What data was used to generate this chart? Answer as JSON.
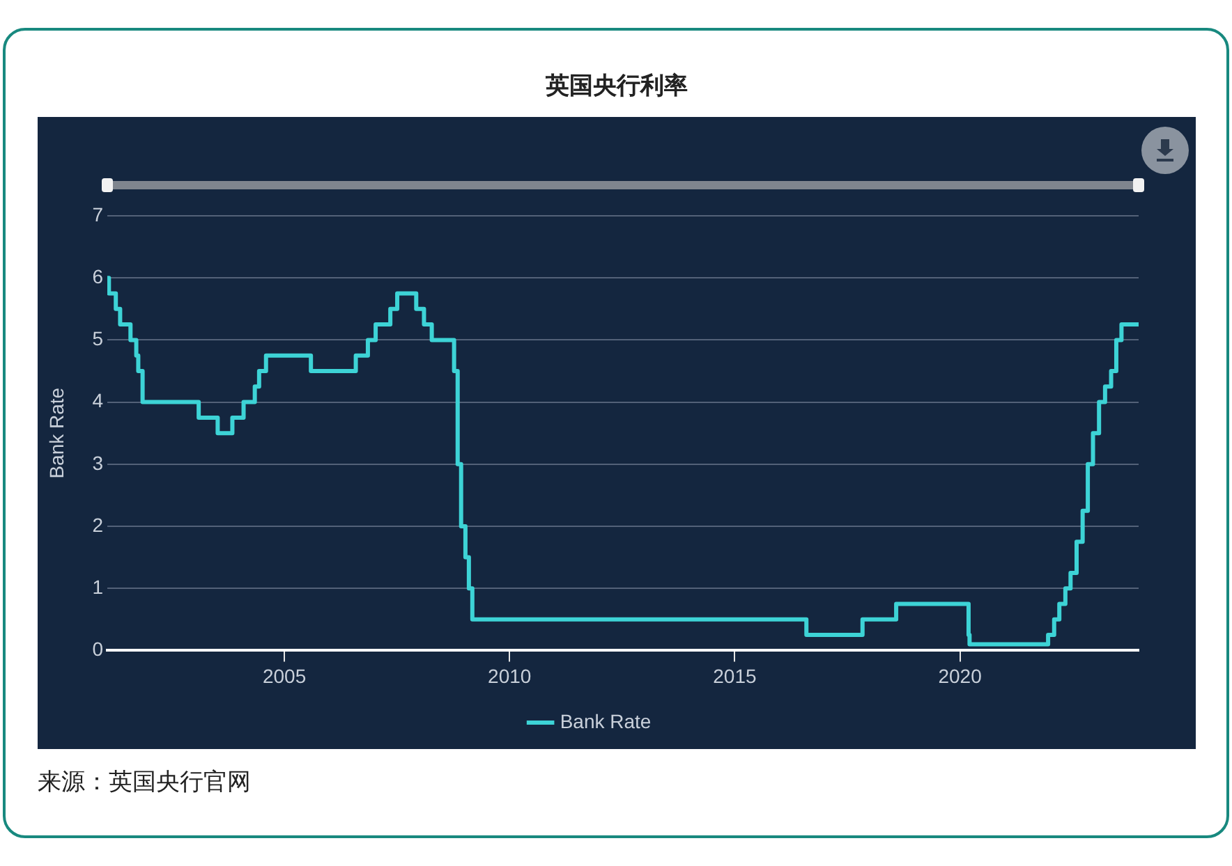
{
  "chart_data": {
    "type": "step",
    "title": "英国央行利率",
    "ylabel": "Bank Rate",
    "annotations": [
      "来源：英国央行官网"
    ],
    "x": [
      "2001-01-26",
      "2001-02-08",
      "2001-04-05",
      "2001-05-10",
      "2001-08-02",
      "2001-09-18",
      "2001-10-04",
      "2001-11-08",
      "2003-02-06",
      "2003-07-10",
      "2003-11-06",
      "2004-02-05",
      "2004-05-06",
      "2004-06-10",
      "2004-08-05",
      "2005-08-04",
      "2006-08-03",
      "2006-11-09",
      "2007-01-11",
      "2007-05-10",
      "2007-07-05",
      "2007-12-06",
      "2008-02-07",
      "2008-04-10",
      "2008-10-08",
      "2008-11-06",
      "2008-12-04",
      "2009-01-08",
      "2009-02-05",
      "2009-03-05",
      "2016-08-04",
      "2017-11-02",
      "2018-08-02",
      "2020-03-11",
      "2020-03-19",
      "2021-12-16",
      "2022-02-03",
      "2022-03-17",
      "2022-05-05",
      "2022-06-16",
      "2022-08-04",
      "2022-09-22",
      "2022-11-03",
      "2022-12-15",
      "2023-02-02",
      "2023-03-23",
      "2023-05-11",
      "2023-06-22",
      "2023-08-03",
      "2023-12-20"
    ],
    "series": [
      {
        "name": "Bank Rate",
        "color": "#3dd3d6",
        "values": [
          6,
          5.75,
          5.5,
          5.25,
          5,
          4.75,
          4.5,
          4,
          3.75,
          3.5,
          3.75,
          4,
          4.25,
          4.5,
          4.75,
          4.5,
          4.75,
          5,
          5.25,
          5.5,
          5.75,
          5.5,
          5.25,
          5,
          4.5,
          3,
          2,
          1.5,
          1,
          0.5,
          0.25,
          0.5,
          0.75,
          0.25,
          0.1,
          0.25,
          0.5,
          0.75,
          1,
          1.25,
          1.75,
          2.25,
          3,
          3.5,
          4,
          4.25,
          4.5,
          5,
          5.25,
          5.25
        ]
      }
    ],
    "xlim": [
      "2001-01-26",
      "2023-12-20"
    ],
    "xticks": [
      "2005",
      "2010",
      "2015",
      "2020"
    ],
    "ylim": [
      0,
      7
    ],
    "yticks": [
      0,
      1,
      2,
      3,
      4,
      5,
      6,
      7
    ],
    "grid": "y",
    "legend": "bottom",
    "marker": "none",
    "line_style": "solid"
  }
}
